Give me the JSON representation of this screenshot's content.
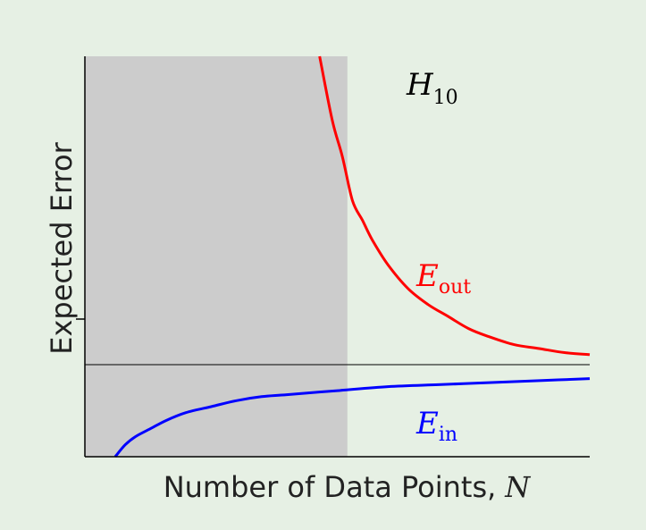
{
  "chart_data": {
    "type": "line",
    "title": "",
    "xlabel": "Number of Data Points,",
    "xlabel_symbol": "N",
    "ylabel": "Expected Error",
    "hypothesis_label": {
      "base": "H",
      "subscript": "10"
    },
    "grid": false,
    "x_range": [
      0,
      1
    ],
    "y_range": [
      0,
      1
    ],
    "shaded_region": {
      "x_start": 0,
      "x_end": 0.52,
      "color": "#cccccc"
    },
    "reference_line": {
      "y": 0.23
    },
    "series": [
      {
        "name": "E_out",
        "label": {
          "base": "E",
          "subscript": "out"
        },
        "color": "#ff0000",
        "x": [
          0.465,
          0.49,
          0.51,
          0.53,
          0.55,
          0.57,
          0.6,
          0.64,
          0.68,
          0.72,
          0.76,
          0.8,
          0.85,
          0.9,
          0.95,
          1.0
        ],
        "y": [
          1.0,
          0.84,
          0.75,
          0.64,
          0.59,
          0.54,
          0.48,
          0.42,
          0.38,
          0.35,
          0.32,
          0.3,
          0.28,
          0.27,
          0.26,
          0.255
        ]
      },
      {
        "name": "E_in",
        "label": {
          "base": "E",
          "subscript": "in"
        },
        "color": "#0000ff",
        "x": [
          0.06,
          0.08,
          0.1,
          0.13,
          0.16,
          0.2,
          0.25,
          0.3,
          0.35,
          0.4,
          0.5,
          0.6,
          0.7,
          0.8,
          0.9,
          1.0
        ],
        "y": [
          0.0,
          0.03,
          0.05,
          0.07,
          0.09,
          0.11,
          0.125,
          0.14,
          0.15,
          0.155,
          0.165,
          0.175,
          0.18,
          0.185,
          0.19,
          0.195
        ]
      }
    ]
  }
}
